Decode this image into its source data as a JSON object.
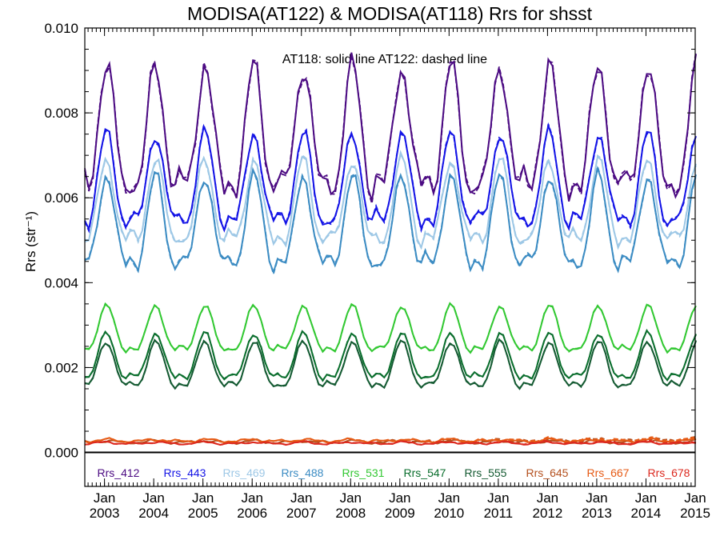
{
  "chart_data": {
    "type": "line",
    "title": "MODISA(AT122) & MODISA(AT118)  Rrs for shsst",
    "subtitle": "AT118: solid line   AT122: dashed line",
    "ylabel": "Rrs (str⁻¹)",
    "xlim": [
      2002.6,
      2015.0
    ],
    "ylim": [
      -0.0008,
      0.01
    ],
    "yticks": [
      "0.000",
      "0.002",
      "0.004",
      "0.006",
      "0.008",
      "0.010"
    ],
    "ytick_values": [
      0.0,
      0.002,
      0.004,
      0.006,
      0.008,
      0.01
    ],
    "xtick_top": [
      "Jan",
      "Jan",
      "Jan",
      "Jan",
      "Jan",
      "Jan",
      "Jan",
      "Jan",
      "Jan",
      "Jan",
      "Jan",
      "Jan",
      "Jan"
    ],
    "xtick_bottom": [
      "2003",
      "2004",
      "2005",
      "2006",
      "2007",
      "2008",
      "2009",
      "2010",
      "2011",
      "2012",
      "2013",
      "2014",
      "2015"
    ],
    "xtick_values": [
      2003,
      2004,
      2005,
      2006,
      2007,
      2008,
      2009,
      2010,
      2011,
      2012,
      2013,
      2014,
      2015
    ],
    "zero_line": 0.0,
    "line_styles": {
      "AT118": "solid",
      "AT122": "dashed"
    },
    "series": [
      {
        "name": "Rrs_412",
        "color": "#4b0a82",
        "base": 0.0073,
        "amp": 0.0015,
        "noise": 0.00035,
        "drift": 0.0
      },
      {
        "name": "Rrs_443",
        "color": "#1414e6",
        "base": 0.0062,
        "amp": 0.0011,
        "noise": 0.0002,
        "drift": 0.0
      },
      {
        "name": "Rrs_469",
        "color": "#9ec8e6",
        "base": 0.0057,
        "amp": 0.001,
        "noise": 0.00018,
        "drift": 0.0
      },
      {
        "name": "Rrs_488",
        "color": "#3c8cc3",
        "base": 0.0052,
        "amp": 0.0011,
        "noise": 0.00018,
        "drift": 0.0
      },
      {
        "name": "Rrs_531",
        "color": "#32c832",
        "base": 0.0028,
        "amp": 0.00055,
        "noise": 6e-05,
        "drift": 0.0
      },
      {
        "name": "Rrs_547",
        "color": "#0a6e2d",
        "base": 0.00215,
        "amp": 0.00055,
        "noise": 6e-05,
        "drift": 0.0
      },
      {
        "name": "Rrs_555",
        "color": "#145a32",
        "base": 0.00195,
        "amp": 0.00055,
        "noise": 6e-05,
        "drift": 0.0
      },
      {
        "name": "Rrs_645",
        "color": "#b4501e",
        "base": 0.00025,
        "amp": 2e-05,
        "noise": 4e-05,
        "drift": 6e-05
      },
      {
        "name": "Rrs_667",
        "color": "#e65a14",
        "base": 0.00028,
        "amp": 2e-05,
        "noise": 4e-05,
        "drift": 3e-05
      },
      {
        "name": "Rrs_678",
        "color": "#dc281e",
        "base": 0.00022,
        "amp": 2e-05,
        "noise": 3e-05,
        "drift": 2e-05
      }
    ]
  }
}
